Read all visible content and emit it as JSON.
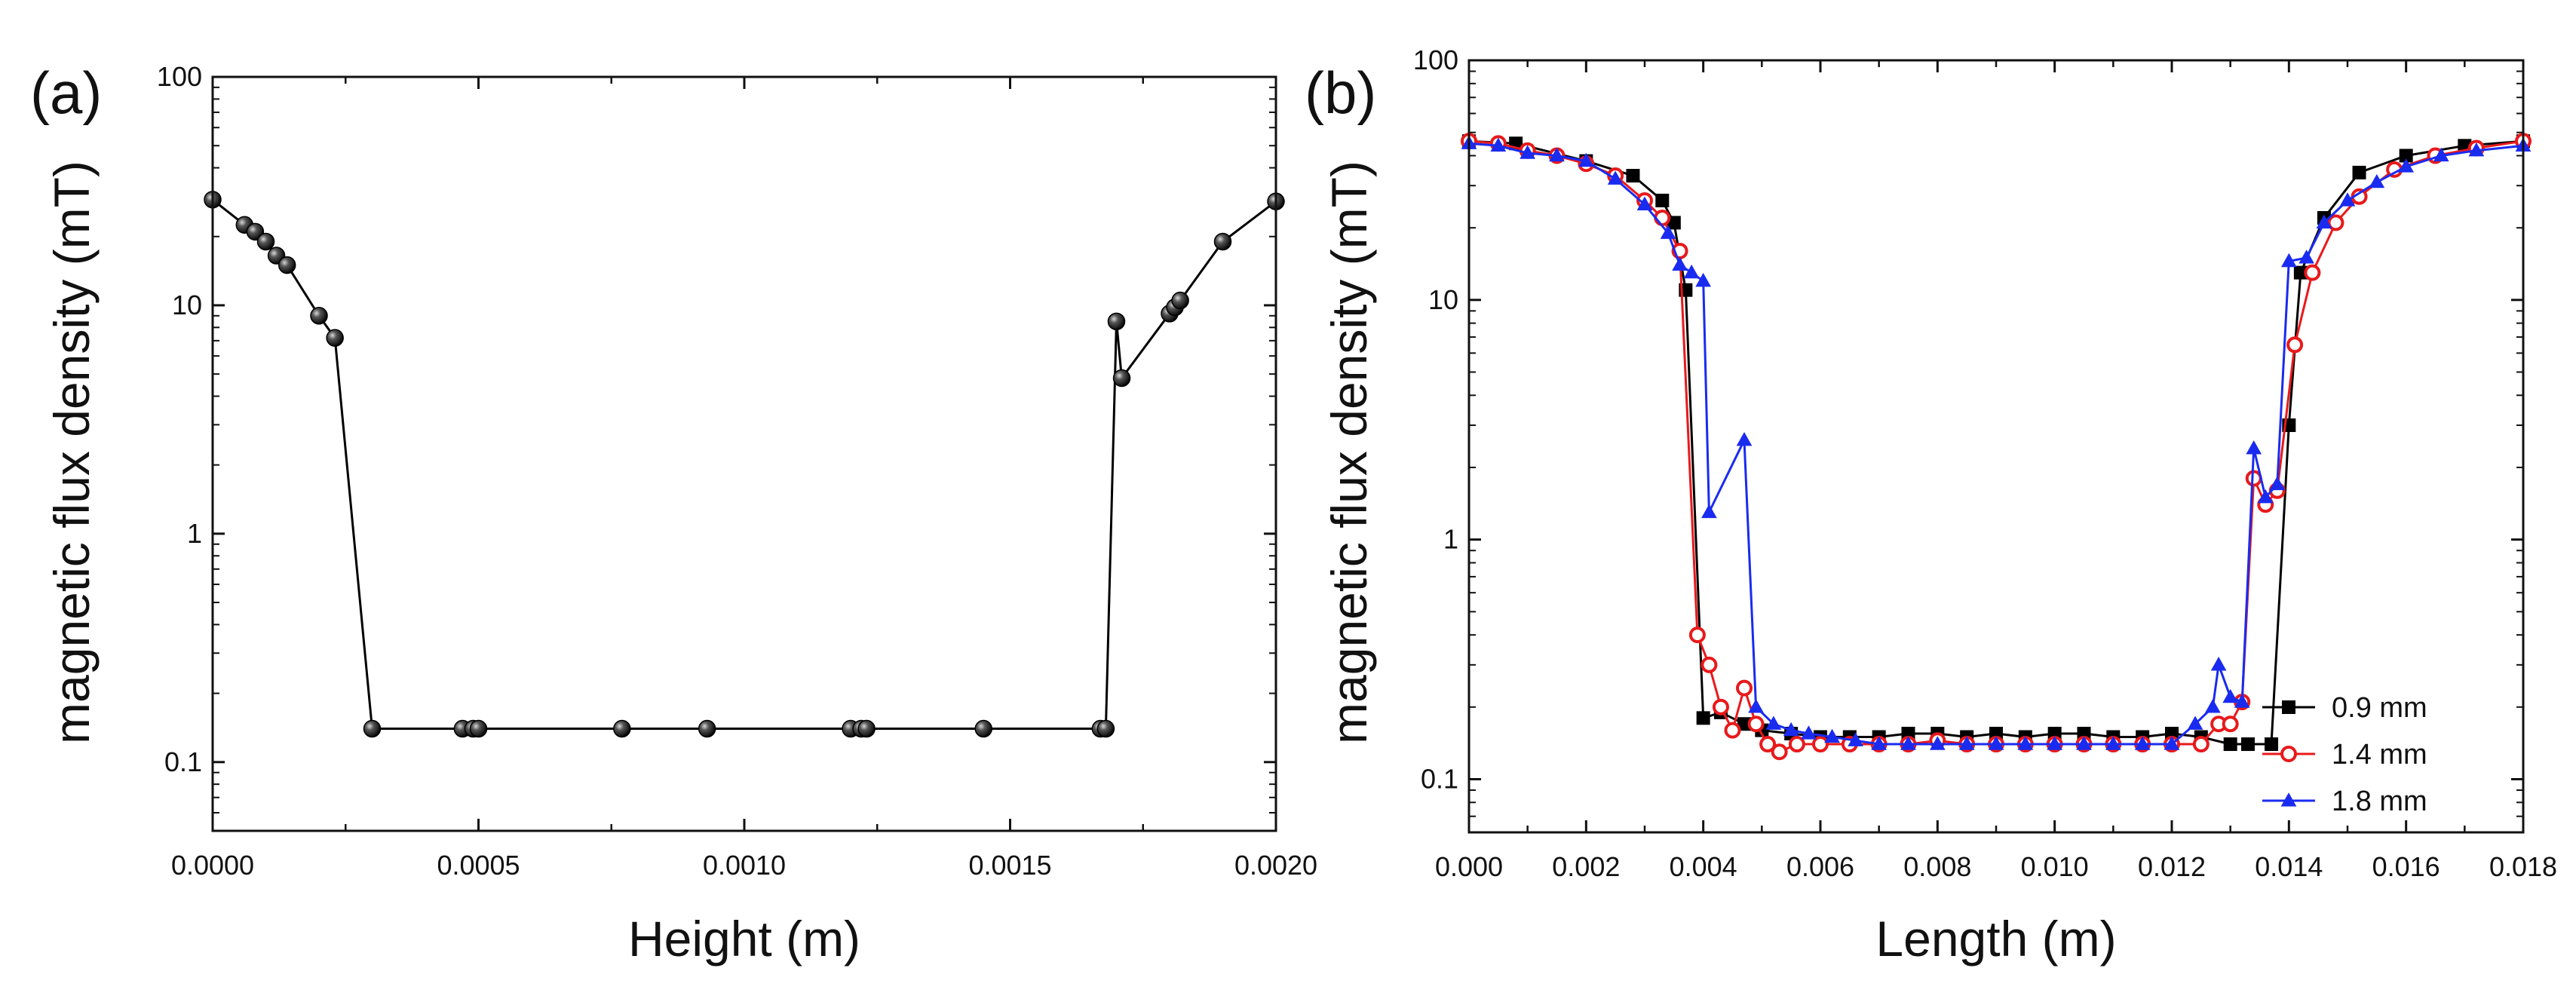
{
  "chart_data": [
    {
      "panel_label": "(a)",
      "type": "line",
      "yscale": "log",
      "xlabel": "Height (m)",
      "ylabel": "magnetic flux density (mT)",
      "xlim": [
        0,
        0.002
      ],
      "ylim": [
        0.05,
        100
      ],
      "xticks": [
        0,
        0.0005,
        0.001,
        0.0015,
        0.002
      ],
      "xtick_labels": [
        "0.0000",
        "0.0005",
        "0.0010",
        "0.0015",
        "0.0020"
      ],
      "yticks": [
        0.1,
        1,
        10,
        100
      ],
      "ytick_labels": [
        "0.1",
        "1",
        "10",
        "100"
      ],
      "series": [
        {
          "name": "magnetic flux density",
          "color": "#000000",
          "marker": "sphere",
          "x": [
            0,
            6e-05,
            8e-05,
            0.0001,
            0.00012,
            0.00014,
            0.0002,
            0.00023,
            0.0003,
            0.00047,
            0.00049,
            0.0005,
            0.00077,
            0.00093,
            0.0012,
            0.00122,
            0.00123,
            0.00145,
            0.00167,
            0.00168,
            0.0017,
            0.00171,
            0.0018,
            0.00181,
            0.00182,
            0.0019,
            0.002
          ],
          "y": [
            29,
            22.5,
            21,
            19,
            16.5,
            15,
            9,
            7.2,
            0.14,
            0.14,
            0.14,
            0.14,
            0.14,
            0.14,
            0.14,
            0.14,
            0.14,
            0.14,
            0.14,
            0.14,
            8.5,
            4.8,
            9.2,
            9.8,
            10.5,
            19,
            28.5
          ]
        }
      ]
    },
    {
      "panel_label": "(b)",
      "type": "line",
      "yscale": "log",
      "xlabel": "Length (m)",
      "ylabel": "magnetic flux density (mT)",
      "xlim": [
        0,
        0.018
      ],
      "ylim": [
        0.06,
        100
      ],
      "xticks": [
        0,
        0.002,
        0.004,
        0.006,
        0.008,
        0.01,
        0.012,
        0.014,
        0.016,
        0.018
      ],
      "xtick_labels": [
        "0.000",
        "0.002",
        "0.004",
        "0.006",
        "0.008",
        "0.010",
        "0.012",
        "0.014",
        "0.016",
        "0.018"
      ],
      "yticks": [
        0.1,
        1,
        10,
        100
      ],
      "ytick_labels": [
        "0.1",
        "1",
        "10",
        "100"
      ],
      "legend": {
        "position": "lower-right",
        "entries": [
          "0.9 mm",
          "1.4 mm",
          "1.8 mm"
        ]
      },
      "series": [
        {
          "name": "0.9 mm",
          "color": "#000000",
          "marker": "square",
          "x": [
            0,
            0.0008,
            0.002,
            0.0028,
            0.0033,
            0.0035,
            0.0037,
            0.004,
            0.0043,
            0.0047,
            0.005,
            0.0055,
            0.006,
            0.0065,
            0.007,
            0.0075,
            0.008,
            0.0085,
            0.009,
            0.0095,
            0.01,
            0.0105,
            0.011,
            0.0115,
            0.012,
            0.0125,
            0.013,
            0.0133,
            0.0137,
            0.014,
            0.0142,
            0.0146,
            0.0152,
            0.016,
            0.017,
            0.018
          ],
          "y": [
            46,
            45,
            38,
            33,
            26,
            21,
            11,
            0.18,
            0.19,
            0.17,
            0.16,
            0.155,
            0.15,
            0.15,
            0.15,
            0.155,
            0.155,
            0.15,
            0.155,
            0.15,
            0.155,
            0.155,
            0.15,
            0.15,
            0.155,
            0.15,
            0.14,
            0.14,
            0.14,
            3,
            13,
            22,
            34,
            40,
            44,
            46
          ]
        },
        {
          "name": "1.4 mm",
          "color": "#e8191b",
          "marker": "circle",
          "x": [
            0,
            0.0005,
            0.001,
            0.0015,
            0.002,
            0.0025,
            0.003,
            0.0033,
            0.0036,
            0.0039,
            0.0041,
            0.0043,
            0.0045,
            0.0047,
            0.0049,
            0.0051,
            0.0053,
            0.0056,
            0.006,
            0.0065,
            0.007,
            0.0075,
            0.008,
            0.0085,
            0.009,
            0.0095,
            0.01,
            0.0105,
            0.011,
            0.0115,
            0.012,
            0.0125,
            0.0128,
            0.013,
            0.0132,
            0.0134,
            0.0136,
            0.0138,
            0.0141,
            0.0144,
            0.0148,
            0.0152,
            0.0158,
            0.0165,
            0.0172,
            0.018
          ],
          "y": [
            46,
            45,
            42,
            40,
            37,
            33,
            26,
            22,
            16,
            0.4,
            0.3,
            0.2,
            0.16,
            0.24,
            0.17,
            0.14,
            0.13,
            0.14,
            0.14,
            0.14,
            0.14,
            0.14,
            0.145,
            0.14,
            0.14,
            0.14,
            0.14,
            0.14,
            0.14,
            0.14,
            0.14,
            0.14,
            0.17,
            0.17,
            0.21,
            1.8,
            1.4,
            1.6,
            6.5,
            13,
            21,
            27,
            35,
            40,
            43,
            46
          ]
        },
        {
          "name": "1.8 mm",
          "color": "#1a2bf0",
          "marker": "triangle",
          "x": [
            0,
            0.0005,
            0.001,
            0.0015,
            0.002,
            0.0025,
            0.003,
            0.0034,
            0.0036,
            0.0038,
            0.004,
            0.0041,
            0.0047,
            0.0049,
            0.0052,
            0.0055,
            0.0058,
            0.0062,
            0.0066,
            0.007,
            0.0075,
            0.008,
            0.0085,
            0.009,
            0.0095,
            0.01,
            0.0105,
            0.011,
            0.0115,
            0.012,
            0.0124,
            0.0127,
            0.0128,
            0.013,
            0.0132,
            0.0134,
            0.0136,
            0.0138,
            0.014,
            0.0143,
            0.0146,
            0.015,
            0.0155,
            0.016,
            0.0166,
            0.0172,
            0.018
          ],
          "y": [
            45,
            44,
            41,
            40,
            38,
            32,
            25,
            19,
            14,
            13,
            12,
            1.3,
            2.6,
            0.2,
            0.17,
            0.16,
            0.155,
            0.15,
            0.145,
            0.14,
            0.14,
            0.14,
            0.14,
            0.14,
            0.14,
            0.14,
            0.14,
            0.14,
            0.14,
            0.14,
            0.17,
            0.2,
            0.3,
            0.22,
            0.21,
            2.4,
            1.5,
            1.7,
            14.5,
            15,
            21,
            26,
            31,
            36,
            40,
            42,
            44
          ]
        }
      ]
    }
  ]
}
